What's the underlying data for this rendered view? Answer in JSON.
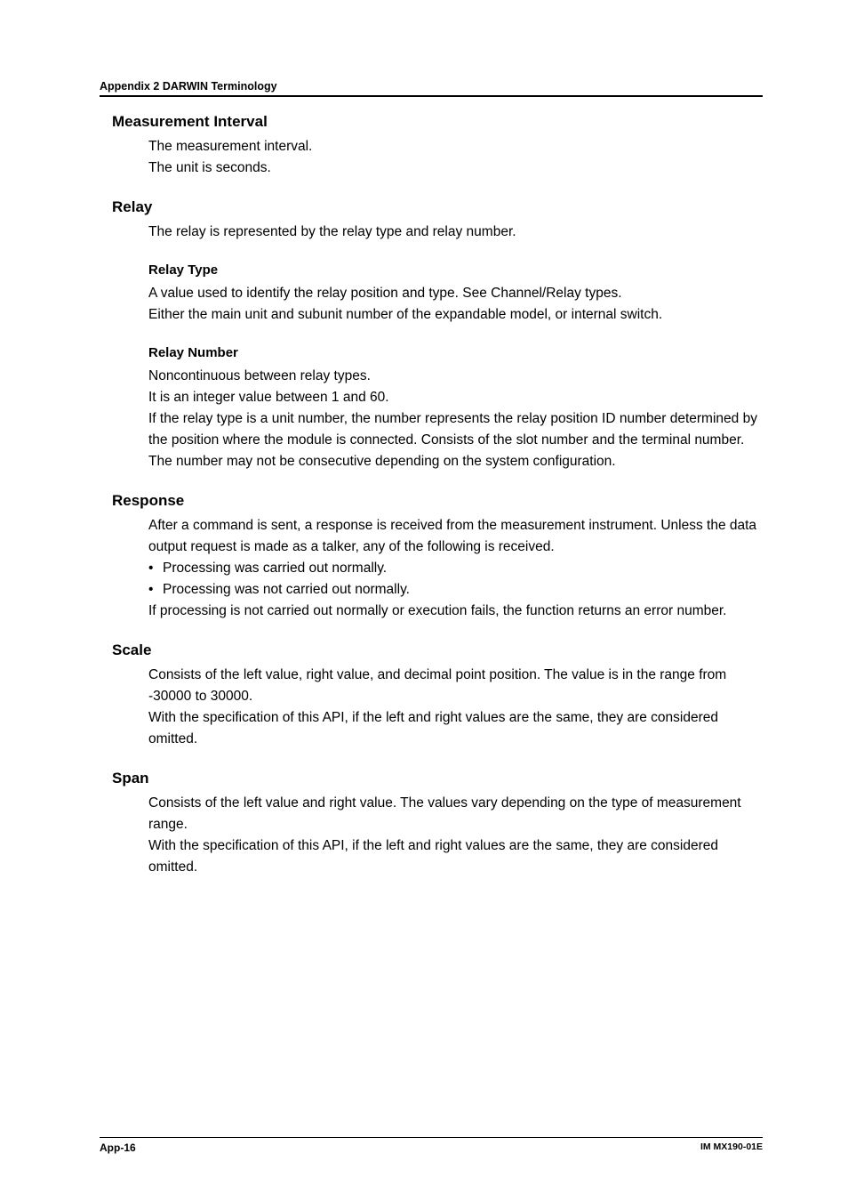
{
  "runningHead": "Appendix 2  DARWIN Terminology",
  "sections": {
    "mi": {
      "title": "Measurement Interval",
      "p1": "The measurement interval.",
      "p2": "The unit is seconds."
    },
    "relay": {
      "title": "Relay",
      "intro": "The relay is represented by the relay type and relay number.",
      "type": {
        "title": "Relay Type",
        "p1": "A value used to identify the relay position and type. See Channel/Relay types.",
        "p2": "Either the main unit and subunit number of the expandable model, or internal switch."
      },
      "number": {
        "title": "Relay Number",
        "p1": "Noncontinuous between relay types.",
        "p2": "It is an integer value between 1 and 60.",
        "p3": "If the relay type is a unit number, the number represents the relay position ID number determined by the position where the module is connected. Consists of the slot number and the terminal number. The number may not be consecutive depending on the system configuration."
      }
    },
    "response": {
      "title": "Response",
      "p1": "After a command is sent, a response is received from the measurement instrument. Unless the data output request is made as a talker, any of the following is received.",
      "b1": "Processing was carried out normally.",
      "b2": "Processing was not carried out normally.",
      "p2": "If processing is not carried out normally or execution fails, the function returns an error number."
    },
    "scale": {
      "title": "Scale",
      "p1": "Consists of the left value, right value, and decimal point position. The value is in the range from -30000 to 30000.",
      "p2": "With the specification of this API, if the left and right values are the same, they are considered omitted."
    },
    "span": {
      "title": "Span",
      "p1": "Consists of the left value and right value. The values vary depending on the type of measurement range.",
      "p2": "With the specification of this API, if the left and right values are the same, they are considered omitted."
    }
  },
  "footer": {
    "left": "App-16",
    "right": "IM MX190-01E"
  }
}
